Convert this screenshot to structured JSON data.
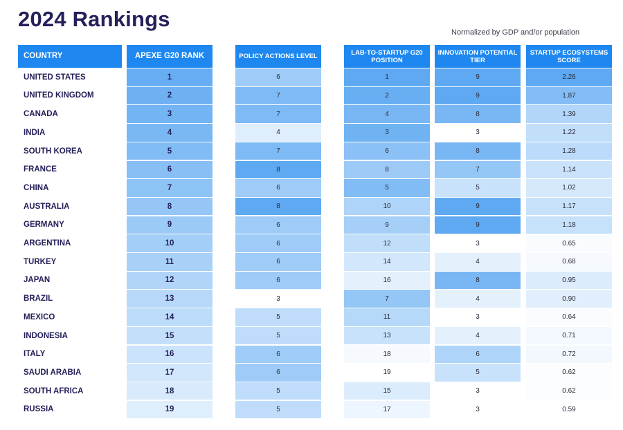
{
  "title": "2024 Rankings",
  "subtitle": "Normalized by GDP and/or population",
  "chart_data": {
    "type": "table",
    "columns": [
      {
        "key": "country",
        "label": "COUNTRY"
      },
      {
        "key": "rank",
        "label": "APEXE G20 RANK"
      },
      {
        "key": "policy",
        "label": "POLICY ACTIONS LEVEL"
      },
      {
        "key": "lab",
        "label": "LAB-TO-STARTUP G20 POSITION"
      },
      {
        "key": "innovation",
        "label": "INNOVATION POTENTIAL TIER"
      },
      {
        "key": "startup",
        "label": "STARTUP ECOSYSTEMS SCORE"
      }
    ],
    "rows": [
      {
        "country": "UNITED STATES",
        "rank": "1",
        "policy": "6",
        "lab": "1",
        "innovation": "9",
        "startup": "2.26"
      },
      {
        "country": "UNITED KINGDOM",
        "rank": "2",
        "policy": "7",
        "lab": "2",
        "innovation": "9",
        "startup": "1.87"
      },
      {
        "country": "CANADA",
        "rank": "3",
        "policy": "7",
        "lab": "4",
        "innovation": "8",
        "startup": "1.39"
      },
      {
        "country": "INDIA",
        "rank": "4",
        "policy": "4",
        "lab": "3",
        "innovation": "3",
        "startup": "1.22"
      },
      {
        "country": "SOUTH KOREA",
        "rank": "5",
        "policy": "7",
        "lab": "6",
        "innovation": "8",
        "startup": "1.28"
      },
      {
        "country": "FRANCE",
        "rank": "6",
        "policy": "8",
        "lab": "8",
        "innovation": "7",
        "startup": "1.14"
      },
      {
        "country": "CHINA",
        "rank": "7",
        "policy": "6",
        "lab": "5",
        "innovation": "5",
        "startup": "1.02"
      },
      {
        "country": "AUSTRALIA",
        "rank": "8",
        "policy": "8",
        "lab": "10",
        "innovation": "9",
        "startup": "1.17"
      },
      {
        "country": "GERMANY",
        "rank": "9",
        "policy": "6",
        "lab": "9",
        "innovation": "9",
        "startup": "1.18"
      },
      {
        "country": "ARGENTINA",
        "rank": "10",
        "policy": "6",
        "lab": "12",
        "innovation": "3",
        "startup": "0.65"
      },
      {
        "country": "TURKEY",
        "rank": "11",
        "policy": "6",
        "lab": "14",
        "innovation": "4",
        "startup": "0.68"
      },
      {
        "country": "JAPAN",
        "rank": "12",
        "policy": "6",
        "lab": "16",
        "innovation": "8",
        "startup": "0.95"
      },
      {
        "country": "BRAZIL",
        "rank": "13",
        "policy": "3",
        "lab": "7",
        "innovation": "4",
        "startup": "0.90"
      },
      {
        "country": "MEXICO",
        "rank": "14",
        "policy": "5",
        "lab": "11",
        "innovation": "3",
        "startup": "0.64"
      },
      {
        "country": "INDONESIA",
        "rank": "15",
        "policy": "5",
        "lab": "13",
        "innovation": "4",
        "startup": "0.71"
      },
      {
        "country": "ITALY",
        "rank": "16",
        "policy": "6",
        "lab": "18",
        "innovation": "6",
        "startup": "0.72"
      },
      {
        "country": "SAUDI ARABIA",
        "rank": "17",
        "policy": "6",
        "lab": "19",
        "innovation": "5",
        "startup": "0.62"
      },
      {
        "country": "SOUTH AFRICA",
        "rank": "18",
        "policy": "5",
        "lab": "15",
        "innovation": "3",
        "startup": "0.62"
      },
      {
        "country": "RUSSIA",
        "rank": "19",
        "policy": "5",
        "lab": "17",
        "innovation": "3",
        "startup": "0.59"
      }
    ],
    "color_scale": {
      "light": "#ffffff",
      "dark": "#5ea9f2"
    },
    "header_color": "#1e88f0",
    "title_color": "#24205a"
  }
}
